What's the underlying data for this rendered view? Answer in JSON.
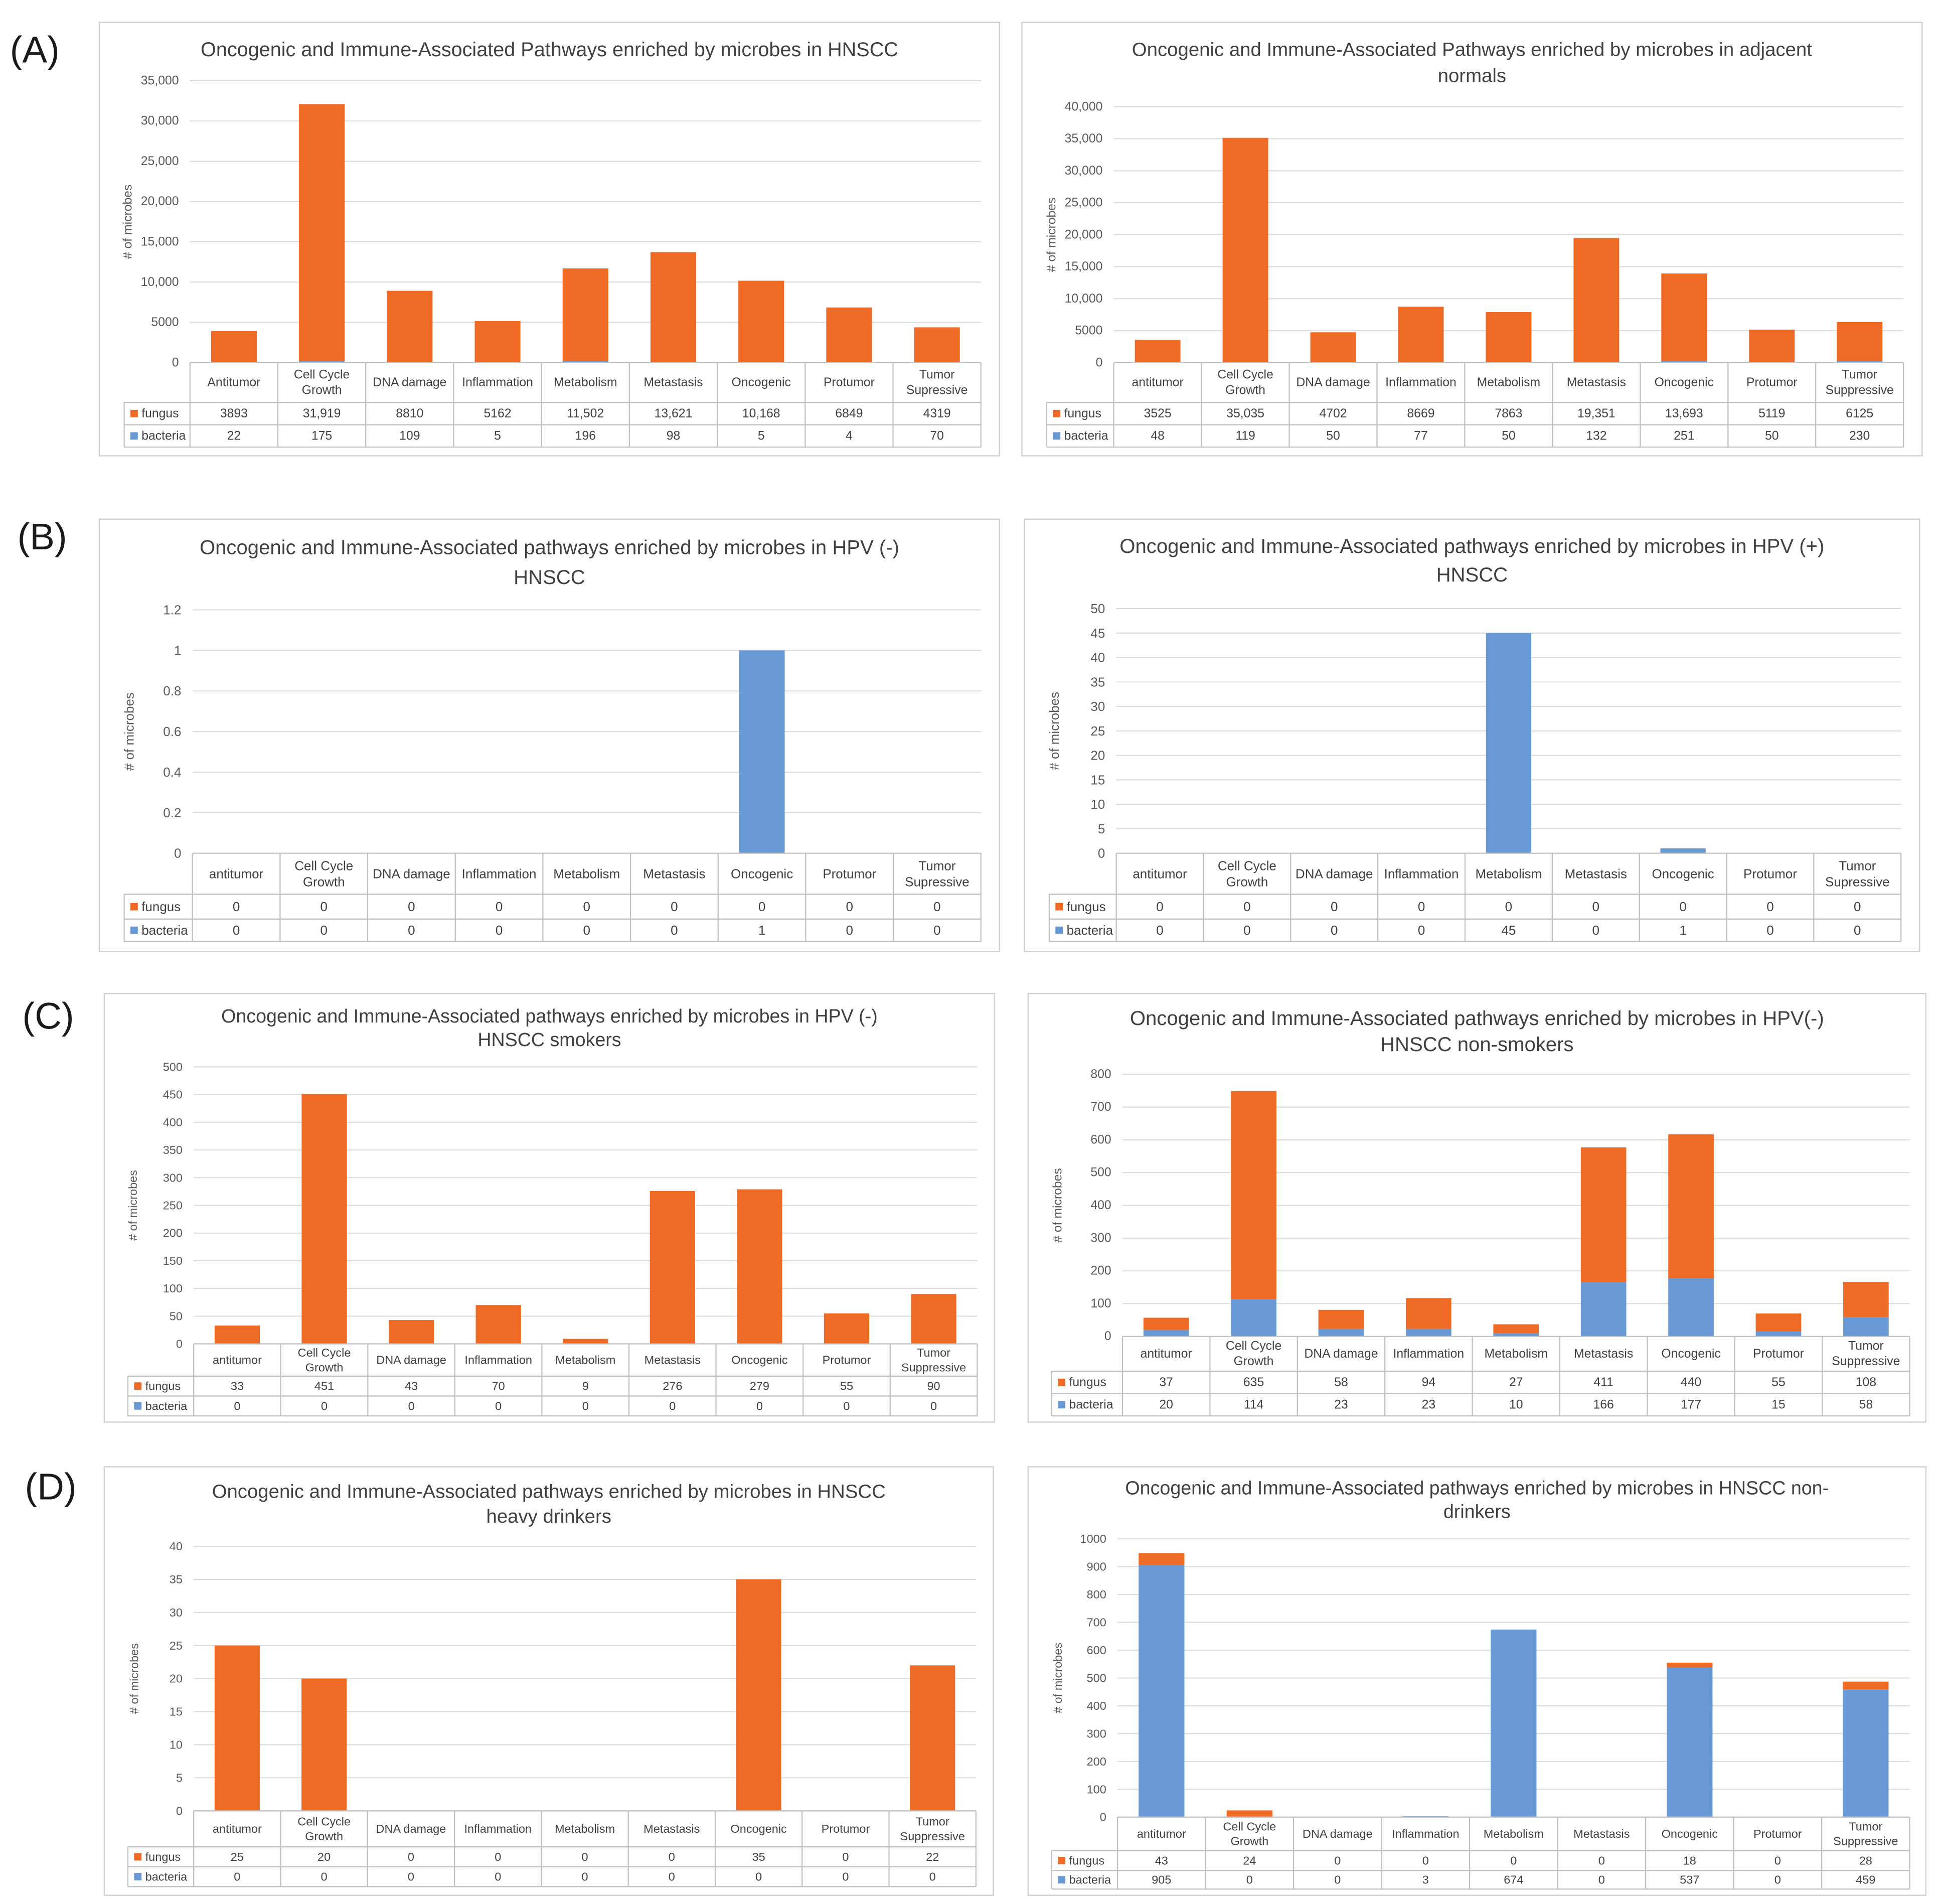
{
  "figure": {
    "panels": [
      {
        "label": "(A)"
      },
      {
        "label": "(B)"
      },
      {
        "label": "(C)"
      },
      {
        "label": "(D)"
      }
    ]
  },
  "colors": {
    "fungus": "#EF6A25",
    "bacteria": "#6899D5"
  },
  "chart_data": [
    {
      "type": "bar",
      "stacked": true,
      "title_lines": [
        "Oncogenic and Immune-Associated Pathways enriched by microbes in HNSCC"
      ],
      "ylabel": "# of microbes",
      "ylim": [
        0,
        35000
      ],
      "yticks": [
        "0",
        "5000",
        "10,000",
        "15,000",
        "20,000",
        "25,000",
        "30,000",
        "35,000"
      ],
      "categories": [
        "Antitumor",
        "Cell Cycle Growth",
        "DNA damage",
        "Inflammation",
        "Metabolism",
        "Metastasis",
        "Oncogenic",
        "Protumor",
        "Tumor Supressive"
      ],
      "series": [
        {
          "name": "fungus",
          "values": [
            3893,
            31919,
            8810,
            5162,
            11502,
            13621,
            10168,
            6849,
            4319
          ]
        },
        {
          "name": "bacteria",
          "values": [
            22,
            175,
            109,
            5,
            196,
            98,
            5,
            4,
            70
          ]
        }
      ]
    },
    {
      "type": "bar",
      "stacked": true,
      "title_lines": [
        "Oncogenic and Immune-Associated Pathways enriched by microbes in adjacent",
        "normals"
      ],
      "ylabel": "# of microbes",
      "ylim": [
        0,
        40000
      ],
      "yticks": [
        "0",
        "5000",
        "10,000",
        "15,000",
        "20,000",
        "25,000",
        "30,000",
        "35,000",
        "40,000"
      ],
      "categories": [
        "antitumor",
        "Cell Cycle Growth",
        "DNA damage",
        "Inflammation",
        "Metabolism",
        "Metastasis",
        "Oncogenic",
        "Protumor",
        "Tumor Suppressive"
      ],
      "series": [
        {
          "name": "fungus",
          "values": [
            3525,
            35035,
            4702,
            8669,
            7863,
            19351,
            13693,
            5119,
            6125
          ]
        },
        {
          "name": "bacteria",
          "values": [
            48,
            119,
            50,
            77,
            50,
            132,
            251,
            50,
            230
          ]
        }
      ]
    },
    {
      "type": "bar",
      "stacked": true,
      "title_lines": [
        "Oncogenic and Immune-Associated pathways enriched by microbes in HPV (-)",
        "HNSCC"
      ],
      "ylabel": "# of microbes",
      "ylim": [
        0,
        1.2
      ],
      "yticks": [
        "0",
        "0.2",
        "0.4",
        "0.6",
        "0.8",
        "1",
        "1.2"
      ],
      "categories": [
        "antitumor",
        "Cell Cycle Growth",
        "DNA damage",
        "Inflammation",
        "Metabolism",
        "Metastasis",
        "Oncogenic",
        "Protumor",
        "Tumor Supressive"
      ],
      "series": [
        {
          "name": "fungus",
          "values": [
            0,
            0,
            0,
            0,
            0,
            0,
            0,
            0,
            0
          ]
        },
        {
          "name": "bacteria",
          "values": [
            0,
            0,
            0,
            0,
            0,
            0,
            1,
            0,
            0
          ]
        }
      ]
    },
    {
      "type": "bar",
      "stacked": true,
      "title_lines": [
        "Oncogenic and Immune-Associated pathways enriched by microbes in HPV (+)",
        "HNSCC"
      ],
      "ylabel": "# of microbes",
      "ylim": [
        0,
        50
      ],
      "yticks": [
        "0",
        "5",
        "10",
        "15",
        "20",
        "25",
        "30",
        "35",
        "40",
        "45",
        "50"
      ],
      "categories": [
        "antitumor",
        "Cell Cycle Growth",
        "DNA damage",
        "Inflammation",
        "Metabolism",
        "Metastasis",
        "Oncogenic",
        "Protumor",
        "Tumor Supressive"
      ],
      "series": [
        {
          "name": "fungus",
          "values": [
            0,
            0,
            0,
            0,
            0,
            0,
            0,
            0,
            0
          ]
        },
        {
          "name": "bacteria",
          "values": [
            0,
            0,
            0,
            0,
            45,
            0,
            1,
            0,
            0
          ]
        }
      ]
    },
    {
      "type": "bar",
      "stacked": true,
      "title_lines": [
        "Oncogenic and Immune-Associated pathways enriched by microbes in HPV (-)",
        "HNSCC smokers"
      ],
      "ylabel": "# of microbes",
      "ylim": [
        0,
        500
      ],
      "yticks": [
        "0",
        "50",
        "100",
        "150",
        "200",
        "250",
        "300",
        "350",
        "400",
        "450",
        "500"
      ],
      "categories": [
        "antitumor",
        "Cell Cycle Growth",
        "DNA damage",
        "Inflammation",
        "Metabolism",
        "Metastasis",
        "Oncogenic",
        "Protumor",
        "Tumor Suppressive"
      ],
      "series": [
        {
          "name": "fungus",
          "values": [
            33,
            451,
            43,
            70,
            9,
            276,
            279,
            55,
            90
          ]
        },
        {
          "name": "bacteria",
          "values": [
            0,
            0,
            0,
            0,
            0,
            0,
            0,
            0,
            0
          ]
        }
      ]
    },
    {
      "type": "bar",
      "stacked": true,
      "title_lines": [
        "Oncogenic and Immune-Associated pathways enriched by microbes in HPV(-)",
        "HNSCC non-smokers"
      ],
      "ylabel": "# of microbes",
      "ylim": [
        0,
        800
      ],
      "yticks": [
        "0",
        "100",
        "200",
        "300",
        "400",
        "500",
        "600",
        "700",
        "800"
      ],
      "categories": [
        "antitumor",
        "Cell Cycle Growth",
        "DNA damage",
        "Inflammation",
        "Metabolism",
        "Metastasis",
        "Oncogenic",
        "Protumor",
        "Tumor Suppressive"
      ],
      "series": [
        {
          "name": "fungus",
          "values": [
            37,
            635,
            58,
            94,
            27,
            411,
            440,
            55,
            108
          ]
        },
        {
          "name": "bacteria",
          "values": [
            20,
            114,
            23,
            23,
            10,
            166,
            177,
            15,
            58
          ]
        }
      ]
    },
    {
      "type": "bar",
      "stacked": true,
      "title_lines": [
        "Oncogenic and Immune-Associated pathways enriched by microbes in HNSCC",
        "heavy drinkers"
      ],
      "ylabel": "# of microbes",
      "ylim": [
        0,
        40
      ],
      "yticks": [
        "0",
        "5",
        "10",
        "15",
        "20",
        "25",
        "30",
        "35",
        "40"
      ],
      "categories": [
        "antitumor",
        "Cell Cycle Growth",
        "DNA damage",
        "Inflammation",
        "Metabolism",
        "Metastasis",
        "Oncogenic",
        "Protumor",
        "Tumor Suppressive"
      ],
      "series": [
        {
          "name": "fungus",
          "values": [
            25,
            20,
            0,
            0,
            0,
            0,
            35,
            0,
            22
          ]
        },
        {
          "name": "bacteria",
          "values": [
            0,
            0,
            0,
            0,
            0,
            0,
            0,
            0,
            0
          ]
        }
      ]
    },
    {
      "type": "bar",
      "stacked": true,
      "title_lines": [
        "Oncogenic and Immune-Associated pathways enriched by microbes in HNSCC non-",
        "drinkers"
      ],
      "ylabel": "# of microbes",
      "ylim": [
        0,
        1000
      ],
      "yticks": [
        "0",
        "100",
        "200",
        "300",
        "400",
        "500",
        "600",
        "700",
        "800",
        "900",
        "1000"
      ],
      "categories": [
        "antitumor",
        "Cell Cycle Growth",
        "DNA damage",
        "Inflammation",
        "Metabolism",
        "Metastasis",
        "Oncogenic",
        "Protumor",
        "Tumor Suppressive"
      ],
      "series": [
        {
          "name": "fungus",
          "values": [
            43,
            24,
            0,
            0,
            0,
            0,
            18,
            0,
            28
          ]
        },
        {
          "name": "bacteria",
          "values": [
            905,
            0,
            0,
            3,
            674,
            0,
            537,
            0,
            459
          ]
        }
      ]
    }
  ]
}
